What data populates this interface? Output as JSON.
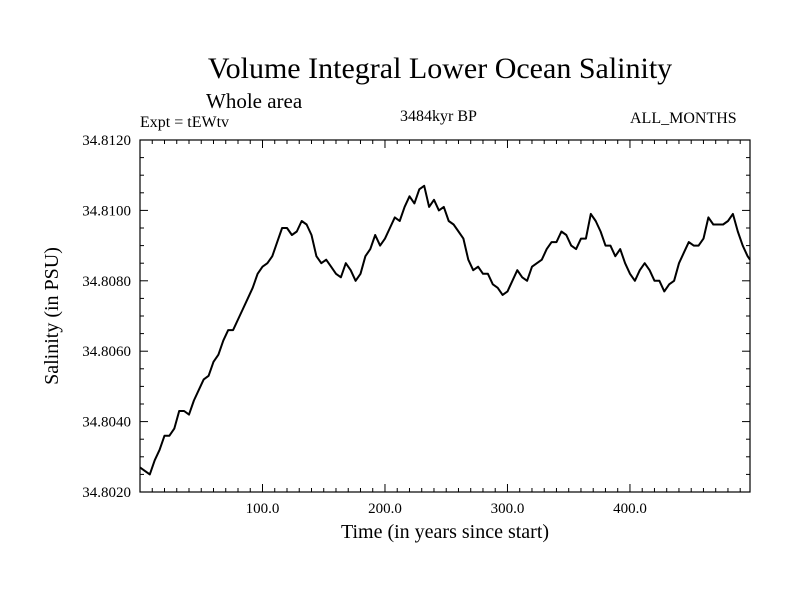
{
  "header": {
    "title": "Volume Integral Lower Ocean Salinity",
    "subtitle": "Whole area",
    "experiment": "Expt = tEWtv",
    "period": "3484kyr BP",
    "months": "ALL_MONTHS"
  },
  "chart_data": {
    "type": "line",
    "title": "Volume Integral Lower Ocean Salinity",
    "xlabel": "Time (in years since start)",
    "ylabel": "Salinity (in PSU)",
    "xlim": [
      0,
      498
    ],
    "ylim": [
      34.802,
      34.812
    ],
    "x_ticks": [
      100,
      200,
      300,
      400
    ],
    "x_tick_labels": [
      "100.0",
      "200.0",
      "300.0",
      "400.0"
    ],
    "y_ticks": [
      34.802,
      34.804,
      34.806,
      34.808,
      34.81,
      34.812
    ],
    "y_tick_labels": [
      "34.8020",
      "34.8040",
      "34.8060",
      "34.8080",
      "34.8100",
      "34.8120"
    ],
    "grid": false,
    "series": [
      {
        "name": "Salinity",
        "color": "#000000",
        "x": [
          0,
          4,
          8,
          12,
          16,
          20,
          24,
          28,
          32,
          36,
          40,
          44,
          48,
          52,
          56,
          60,
          64,
          68,
          72,
          76,
          80,
          84,
          88,
          92,
          96,
          100,
          104,
          108,
          112,
          116,
          120,
          124,
          128,
          132,
          136,
          140,
          144,
          148,
          152,
          156,
          160,
          164,
          168,
          172,
          176,
          180,
          184,
          188,
          192,
          196,
          200,
          204,
          208,
          212,
          216,
          220,
          224,
          228,
          232,
          236,
          240,
          244,
          248,
          252,
          256,
          260,
          264,
          268,
          272,
          276,
          280,
          284,
          288,
          292,
          296,
          300,
          304,
          308,
          312,
          316,
          320,
          324,
          328,
          332,
          336,
          340,
          344,
          348,
          352,
          356,
          360,
          364,
          368,
          372,
          376,
          380,
          384,
          388,
          392,
          396,
          400,
          404,
          408,
          412,
          416,
          420,
          424,
          428,
          432,
          436,
          440,
          444,
          448,
          452,
          456,
          460,
          464,
          468,
          472,
          476,
          480,
          484,
          488,
          492,
          496,
          498
        ],
        "values": [
          34.8027,
          34.8026,
          34.8025,
          34.8029,
          34.8032,
          34.8036,
          34.8036,
          34.8038,
          34.8043,
          34.8043,
          34.8042,
          34.8046,
          34.8049,
          34.8052,
          34.8053,
          34.8057,
          34.8059,
          34.8063,
          34.8066,
          34.8066,
          34.8069,
          34.8072,
          34.8075,
          34.8078,
          34.8082,
          34.8084,
          34.8085,
          34.8087,
          34.8091,
          34.8095,
          34.8095,
          34.8093,
          34.8094,
          34.8097,
          34.8096,
          34.8093,
          34.8087,
          34.8085,
          34.8086,
          34.8084,
          34.8082,
          34.8081,
          34.8085,
          34.8083,
          34.808,
          34.8082,
          34.8087,
          34.8089,
          34.8093,
          34.809,
          34.8092,
          34.8095,
          34.8098,
          34.8097,
          34.8101,
          34.8104,
          34.8102,
          34.8106,
          34.8107,
          34.8101,
          34.8103,
          34.81,
          34.8101,
          34.8097,
          34.8096,
          34.8094,
          34.8092,
          34.8086,
          34.8083,
          34.8084,
          34.8082,
          34.8082,
          34.8079,
          34.8078,
          34.8076,
          34.8077,
          34.808,
          34.8083,
          34.8081,
          34.808,
          34.8084,
          34.8085,
          34.8086,
          34.8089,
          34.8091,
          34.8091,
          34.8094,
          34.8093,
          34.809,
          34.8089,
          34.8092,
          34.8092,
          34.8099,
          34.8097,
          34.8094,
          34.809,
          34.809,
          34.8087,
          34.8089,
          34.8085,
          34.8082,
          34.808,
          34.8083,
          34.8085,
          34.8083,
          34.808,
          34.808,
          34.8077,
          34.8079,
          34.808,
          34.8085,
          34.8088,
          34.8091,
          34.809,
          34.809,
          34.8092,
          34.8098,
          34.8096,
          34.8096,
          34.8096,
          34.8097,
          34.8099,
          34.8094,
          34.809,
          34.8087,
          34.8086
        ]
      }
    ]
  }
}
